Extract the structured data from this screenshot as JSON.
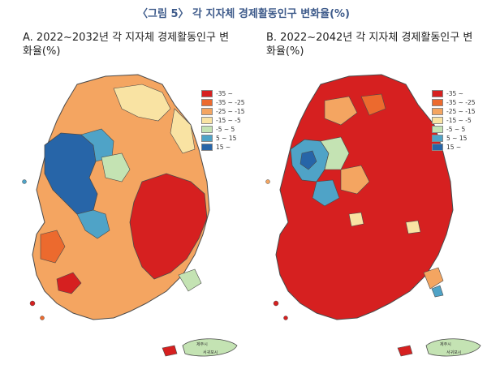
{
  "figure_title": "〈그림 5〉 각 지자체 경제활동인구 변화율(%)",
  "panels": [
    {
      "id": "a",
      "title": "A. 2022~2032년 각 지자체 경제활동인구 변화율(%)",
      "dominant_class": 2
    },
    {
      "id": "b",
      "title": "B. 2022~2042년 각 지자체 경제활동인구 변화율(%)",
      "dominant_class": 0
    }
  ],
  "legend": [
    {
      "label": "-35 ~",
      "color": "#d62020"
    },
    {
      "label": "-35 ~ -25",
      "color": "#ec6a2e"
    },
    {
      "label": "-25 ~ -15",
      "color": "#f4a561"
    },
    {
      "label": "-15 ~ -5",
      "color": "#f9e3a3"
    },
    {
      "label": "-5 ~ 5",
      "color": "#c4e3b3"
    },
    {
      "label": "5 ~ 15",
      "color": "#4fa3c7"
    },
    {
      "label": "15 ~",
      "color": "#2765a8"
    }
  ],
  "map_colors": {
    "sea": "#ffffff",
    "border": "#4a4a4a"
  },
  "map_labels": {
    "jeju_label": "제주시",
    "seogwipo_label": "서귀포시"
  }
}
